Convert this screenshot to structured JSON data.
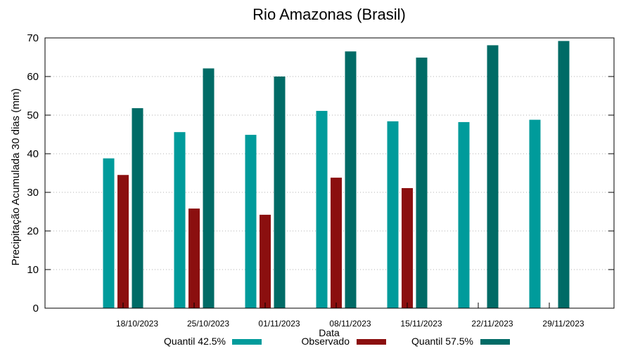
{
  "chart_data": {
    "type": "bar",
    "title": "Rio Amazonas (Brasil)",
    "xlabel": "Data",
    "ylabel": "Precipitação Acumulada 30 dias (mm)",
    "ylim": [
      0,
      70
    ],
    "yticks": [
      0,
      10,
      20,
      30,
      40,
      50,
      60,
      70
    ],
    "grid": true,
    "legend_position": "bottom",
    "categories": [
      "18/10/2023",
      "25/10/2023",
      "01/11/2023",
      "08/11/2023",
      "15/11/2023",
      "22/11/2023",
      "29/11/2023"
    ],
    "series": [
      {
        "name": "Quantil 42.5%",
        "color": "#009B9B",
        "values": [
          38.8,
          45.6,
          44.9,
          51.1,
          48.4,
          48.2,
          48.8
        ]
      },
      {
        "name": "Observado",
        "color": "#8B0F0F",
        "values": [
          34.5,
          25.8,
          24.2,
          33.8,
          31.1,
          null,
          null
        ]
      },
      {
        "name": "Quantil 57.5%",
        "color": "#006B66",
        "values": [
          51.8,
          62.1,
          60.0,
          66.5,
          64.9,
          68.1,
          69.2
        ]
      }
    ]
  }
}
